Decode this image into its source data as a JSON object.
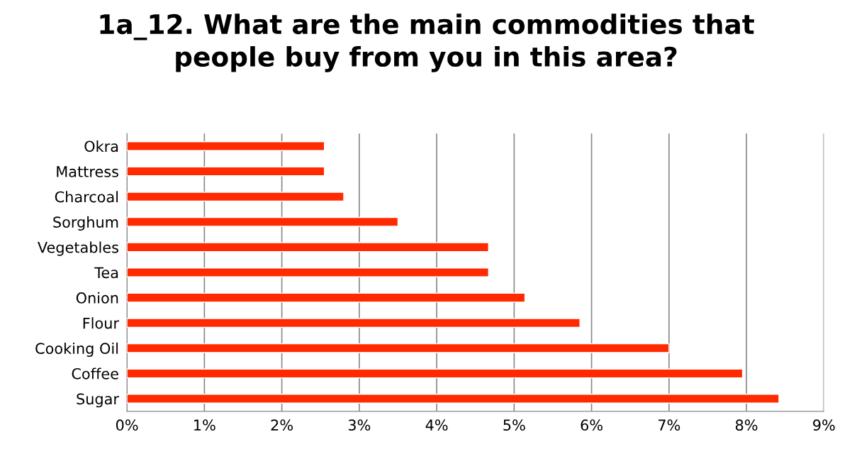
{
  "chart_data": {
    "type": "bar",
    "orientation": "horizontal",
    "title": "1a_12. What are the main commodities that\npeople buy from you in this area?",
    "categories": [
      "Okra",
      "Mattress",
      "Charcoal",
      "Sorghum",
      "Vegetables",
      "Tea",
      "Onion",
      "Flour",
      "Cooking Oil",
      "Coffee",
      "Sugar"
    ],
    "values": [
      2.55,
      2.55,
      2.8,
      3.5,
      4.67,
      4.67,
      5.14,
      5.85,
      7.0,
      7.95,
      8.42
    ],
    "color": "#ff2a00",
    "xlim": [
      0,
      9
    ],
    "xticks": [
      {
        "value": 0,
        "label": "0%"
      },
      {
        "value": 1,
        "label": "1%"
      },
      {
        "value": 2,
        "label": "2%"
      },
      {
        "value": 3,
        "label": "3%"
      },
      {
        "value": 4,
        "label": "4%"
      },
      {
        "value": 5,
        "label": "5%"
      },
      {
        "value": 6,
        "label": "6%"
      },
      {
        "value": 7,
        "label": "7%"
      },
      {
        "value": 8,
        "label": "8%"
      },
      {
        "value": 9,
        "label": "9%"
      }
    ],
    "grid": "x"
  }
}
